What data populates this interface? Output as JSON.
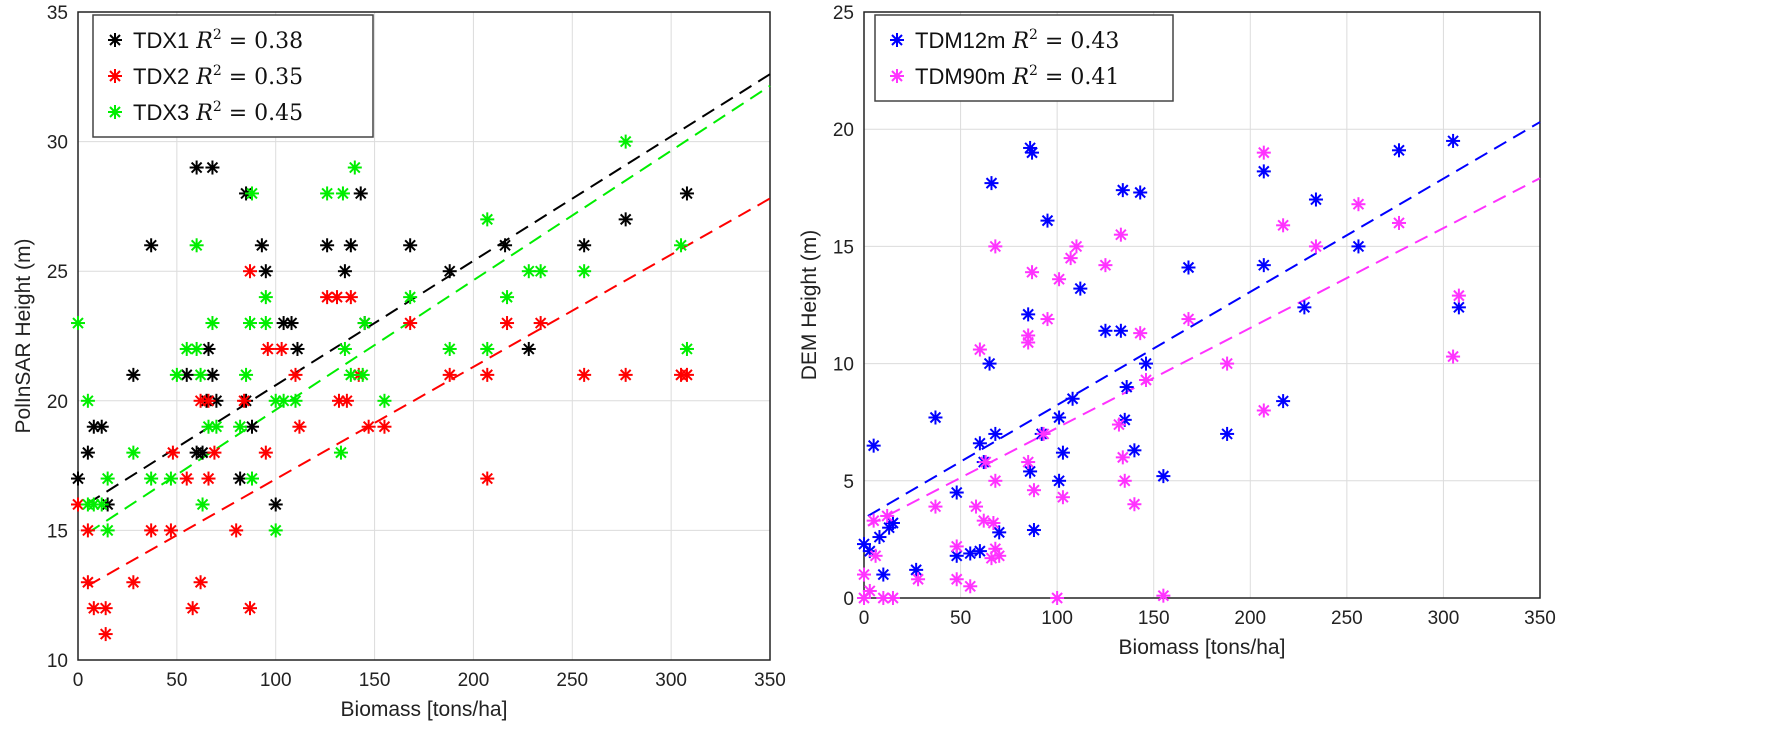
{
  "chart_data": [
    {
      "type": "scatter",
      "xlabel": "Biomass [tons/ha]",
      "ylabel": "PolInSAR Height (m)",
      "xlim": [
        0,
        350
      ],
      "ylim": [
        10,
        35
      ],
      "xticks": [
        0,
        50,
        100,
        150,
        200,
        250,
        300,
        350
      ],
      "yticks": [
        10,
        15,
        20,
        25,
        30,
        35
      ],
      "grid": true,
      "legend_position": "top-left",
      "series": [
        {
          "name": "TDX1",
          "r2_label": "0.38",
          "color": "#000000",
          "fit": [
            15.8,
            0.048
          ],
          "points": [
            [
              0,
              17
            ],
            [
              5,
              18
            ],
            [
              8,
              19
            ],
            [
              12,
              19
            ],
            [
              15,
              16
            ],
            [
              28,
              21
            ],
            [
              37,
              26
            ],
            [
              55,
              21
            ],
            [
              60,
              29
            ],
            [
              60,
              18
            ],
            [
              63,
              18
            ],
            [
              65,
              20
            ],
            [
              66,
              22
            ],
            [
              68,
              29
            ],
            [
              68,
              21
            ],
            [
              70,
              20
            ],
            [
              82,
              17
            ],
            [
              85,
              28
            ],
            [
              85,
              20
            ],
            [
              88,
              19
            ],
            [
              93,
              26
            ],
            [
              95,
              25
            ],
            [
              100,
              16
            ],
            [
              104,
              23
            ],
            [
              108,
              23
            ],
            [
              111,
              22
            ],
            [
              126,
              26
            ],
            [
              135,
              25
            ],
            [
              138,
              26
            ],
            [
              143,
              28
            ],
            [
              145,
              23
            ],
            [
              168,
              26
            ],
            [
              188,
              25
            ],
            [
              216,
              26
            ],
            [
              228,
              22
            ],
            [
              256,
              26
            ],
            [
              277,
              27
            ],
            [
              308,
              28
            ]
          ]
        },
        {
          "name": "TDX2",
          "r2_label": "0.35",
          "color": "#ff0000",
          "fit": [
            12.65,
            0.0433
          ],
          "points": [
            [
              0,
              16
            ],
            [
              5,
              13
            ],
            [
              5,
              15
            ],
            [
              8,
              12
            ],
            [
              14,
              12
            ],
            [
              14,
              11
            ],
            [
              28,
              13
            ],
            [
              37,
              15
            ],
            [
              47,
              15
            ],
            [
              48,
              18
            ],
            [
              55,
              17
            ],
            [
              58,
              12
            ],
            [
              62,
              13
            ],
            [
              62,
              20
            ],
            [
              66,
              20
            ],
            [
              66,
              17
            ],
            [
              69,
              18
            ],
            [
              80,
              15
            ],
            [
              84,
              20
            ],
            [
              87,
              25
            ],
            [
              87,
              12
            ],
            [
              95,
              18
            ],
            [
              96,
              22
            ],
            [
              103,
              22
            ],
            [
              110,
              21
            ],
            [
              112,
              19
            ],
            [
              126,
              24
            ],
            [
              131,
              24
            ],
            [
              138,
              24
            ],
            [
              132,
              20
            ],
            [
              136,
              20
            ],
            [
              142,
              21
            ],
            [
              147,
              19
            ],
            [
              155,
              19
            ],
            [
              168,
              23
            ],
            [
              188,
              21
            ],
            [
              207,
              21
            ],
            [
              207,
              17
            ],
            [
              217,
              23
            ],
            [
              234,
              23
            ],
            [
              256,
              21
            ],
            [
              277,
              21
            ],
            [
              305,
              21
            ],
            [
              308,
              21
            ]
          ]
        },
        {
          "name": "TDX3",
          "r2_label": "0.45",
          "color": "#00ee00",
          "fit": [
            14.65,
            0.05
          ],
          "points": [
            [
              0,
              23
            ],
            [
              5,
              20
            ],
            [
              5,
              16
            ],
            [
              8,
              16
            ],
            [
              12,
              16
            ],
            [
              15,
              17
            ],
            [
              15,
              15
            ],
            [
              28,
              18
            ],
            [
              37,
              17
            ],
            [
              47,
              17
            ],
            [
              50,
              21
            ],
            [
              55,
              22
            ],
            [
              60,
              22
            ],
            [
              60,
              26
            ],
            [
              62,
              21
            ],
            [
              63,
              16
            ],
            [
              66,
              19
            ],
            [
              68,
              23
            ],
            [
              70,
              19
            ],
            [
              82,
              19
            ],
            [
              85,
              21
            ],
            [
              87,
              23
            ],
            [
              88,
              28
            ],
            [
              88,
              17
            ],
            [
              95,
              23
            ],
            [
              95,
              24
            ],
            [
              100,
              20
            ],
            [
              100,
              15
            ],
            [
              104,
              20
            ],
            [
              110,
              20
            ],
            [
              126,
              28
            ],
            [
              133,
              18
            ],
            [
              134,
              28
            ],
            [
              135,
              22
            ],
            [
              138,
              21
            ],
            [
              140,
              29
            ],
            [
              144,
              21
            ],
            [
              145,
              23
            ],
            [
              155,
              20
            ],
            [
              168,
              24
            ],
            [
              188,
              22
            ],
            [
              207,
              22
            ],
            [
              207,
              27
            ],
            [
              217,
              24
            ],
            [
              228,
              25
            ],
            [
              234,
              25
            ],
            [
              256,
              25
            ],
            [
              277,
              30
            ],
            [
              305,
              26
            ],
            [
              308,
              22
            ]
          ]
        }
      ]
    },
    {
      "type": "scatter",
      "xlabel": "Biomass [tons/ha]",
      "ylabel": "DEM Height (m)",
      "xlim": [
        0,
        350
      ],
      "ylim": [
        0,
        25
      ],
      "xticks": [
        0,
        50,
        100,
        150,
        200,
        250,
        300,
        350
      ],
      "yticks": [
        0,
        5,
        10,
        15,
        20,
        25
      ],
      "grid": true,
      "legend_position": "top-left",
      "series": [
        {
          "name": "TDM12m",
          "r2_label": "0.43",
          "color": "#0000ff",
          "fit": [
            3.4,
            0.0483
          ],
          "points": [
            [
              0,
              2.3
            ],
            [
              3,
              2
            ],
            [
              5,
              6.5
            ],
            [
              8,
              2.6
            ],
            [
              10,
              1
            ],
            [
              13,
              3
            ],
            [
              15,
              3.2
            ],
            [
              27,
              1.2
            ],
            [
              37,
              7.7
            ],
            [
              48,
              4.5
            ],
            [
              48,
              1.8
            ],
            [
              55,
              1.9
            ],
            [
              60,
              2
            ],
            [
              60,
              6.6
            ],
            [
              62,
              5.8
            ],
            [
              65,
              10
            ],
            [
              66,
              17.7
            ],
            [
              68,
              7
            ],
            [
              70,
              2.8
            ],
            [
              85,
              12.1
            ],
            [
              86,
              19.2
            ],
            [
              87,
              19
            ],
            [
              86,
              5.4
            ],
            [
              88,
              2.9
            ],
            [
              92,
              7
            ],
            [
              95,
              16.1
            ],
            [
              101,
              7.7
            ],
            [
              101,
              5
            ],
            [
              103,
              6.2
            ],
            [
              108,
              8.5
            ],
            [
              112,
              13.2
            ],
            [
              125,
              11.4
            ],
            [
              133,
              11.4
            ],
            [
              134,
              17.4
            ],
            [
              135,
              7.6
            ],
            [
              136,
              9
            ],
            [
              140,
              6.3
            ],
            [
              143,
              17.3
            ],
            [
              146,
              10
            ],
            [
              155,
              5.2
            ],
            [
              168,
              14.1
            ],
            [
              188,
              7
            ],
            [
              207,
              14.2
            ],
            [
              207,
              18.2
            ],
            [
              217,
              8.4
            ],
            [
              228,
              12.4
            ],
            [
              234,
              17
            ],
            [
              256,
              15
            ],
            [
              277,
              19.1
            ],
            [
              305,
              19.5
            ],
            [
              308,
              12.4
            ]
          ]
        },
        {
          "name": "TDM90m",
          "r2_label": "0.41",
          "color": "#ff33ff",
          "fit": [
            3.0,
            0.0426
          ],
          "points": [
            [
              0,
              1
            ],
            [
              0,
              0
            ],
            [
              3,
              0.3
            ],
            [
              5,
              3.3
            ],
            [
              6,
              1.8
            ],
            [
              10,
              0
            ],
            [
              12,
              3.5
            ],
            [
              15,
              0
            ],
            [
              28,
              0.8
            ],
            [
              37,
              3.9
            ],
            [
              48,
              2.2
            ],
            [
              48,
              0.8
            ],
            [
              55,
              0.5
            ],
            [
              58,
              3.9
            ],
            [
              60,
              10.6
            ],
            [
              62,
              3.3
            ],
            [
              63,
              5.8
            ],
            [
              66,
              1.7
            ],
            [
              67,
              3.2
            ],
            [
              68,
              15
            ],
            [
              68,
              2.1
            ],
            [
              70,
              1.8
            ],
            [
              68,
              5
            ],
            [
              85,
              11.2
            ],
            [
              85,
              10.9
            ],
            [
              85,
              5.8
            ],
            [
              87,
              13.9
            ],
            [
              88,
              4.6
            ],
            [
              95,
              11.9
            ],
            [
              93,
              7
            ],
            [
              100,
              0
            ],
            [
              101,
              13.6
            ],
            [
              103,
              4.3
            ],
            [
              107,
              14.5
            ],
            [
              110,
              15
            ],
            [
              125,
              14.2
            ],
            [
              132,
              7.4
            ],
            [
              133,
              15.5
            ],
            [
              134,
              6
            ],
            [
              135,
              5
            ],
            [
              140,
              4
            ],
            [
              143,
              11.3
            ],
            [
              146,
              9.3
            ],
            [
              155,
              0.1
            ],
            [
              168,
              11.9
            ],
            [
              188,
              10
            ],
            [
              207,
              19
            ],
            [
              207,
              8
            ],
            [
              217,
              15.9
            ],
            [
              234,
              15
            ],
            [
              256,
              16.8
            ],
            [
              277,
              16
            ],
            [
              305,
              10.3
            ],
            [
              308,
              12.9
            ]
          ]
        }
      ]
    }
  ]
}
